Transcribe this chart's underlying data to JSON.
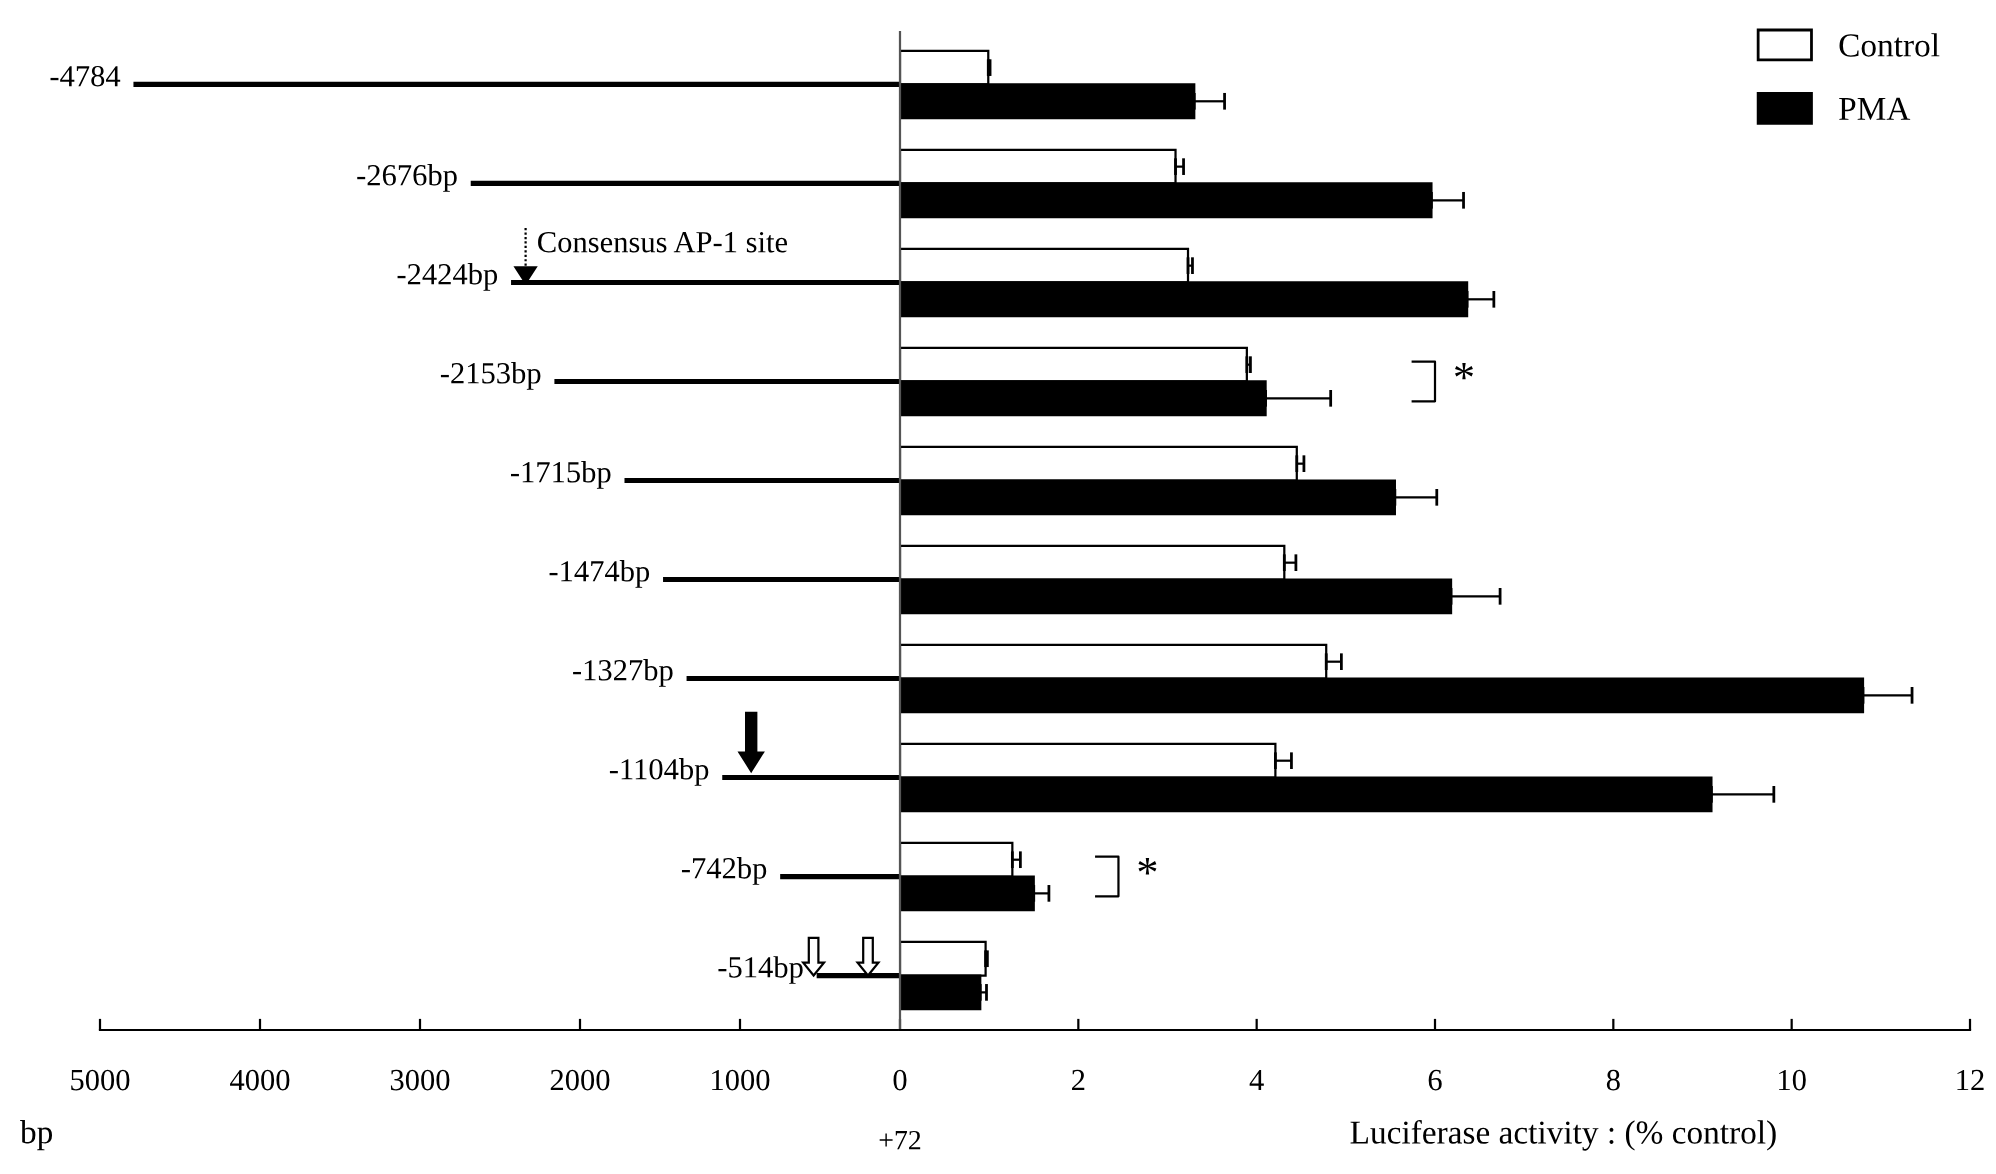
{
  "chart_data": [
    {
      "type": "bar",
      "orientation": "horizontal",
      "xlabel": "bp",
      "categories": [
        null,
        null,
        null,
        null,
        null,
        null,
        null,
        null,
        null,
        null
      ],
      "values": [
        -4784,
        -2676,
        -2424,
        -2153,
        -1715,
        -1474,
        -1327,
        -1104,
        -742,
        -514
      ],
      "value_labels": [
        "-4784",
        "-2676bp",
        "-2424bp",
        "-2153bp",
        "-1715bp",
        "-1474bp",
        "-1327bp",
        "-1104bp",
        "-742bp",
        "-514bp"
      ],
      "color": "#000000",
      "xlim": [
        -5000,
        0
      ],
      "xticks": [
        {
          "value": -5000,
          "label": "5000"
        },
        {
          "value": -4000,
          "label": "4000"
        },
        {
          "value": -3000,
          "label": "3000"
        },
        {
          "value": -2000,
          "label": "2000"
        },
        {
          "value": -1000,
          "label": "1000"
        }
      ],
      "tick_labels": "x",
      "annotations": [
        "Consensus AP-1 site",
        "+72"
      ]
    },
    {
      "type": "bar",
      "orientation": "horizontal",
      "xlabel": "Luciferase activity : (% control)",
      "categories": [
        null,
        null,
        null,
        null,
        null,
        null,
        null,
        null,
        null,
        null
      ],
      "series": [
        {
          "name": "Control",
          "color": "#ffffff",
          "values": [
            0.99,
            3.09,
            3.23,
            3.89,
            4.45,
            4.31,
            4.78,
            4.21,
            1.26,
            0.96
          ],
          "errors": [
            [
              0.99,
              1.01
            ],
            [
              3.09,
              3.18
            ],
            [
              3.23,
              3.28
            ],
            [
              3.89,
              3.93
            ],
            [
              4.45,
              4.53
            ],
            [
              4.31,
              4.44
            ],
            [
              4.78,
              4.95
            ],
            [
              4.21,
              4.39
            ],
            [
              1.26,
              1.35
            ],
            [
              0.96,
              0.98
            ]
          ]
        },
        {
          "name": "PMA",
          "color": "#000000",
          "values": [
            3.3,
            5.96,
            6.36,
            4.1,
            5.55,
            6.18,
            10.8,
            9.1,
            1.5,
            0.9
          ],
          "errors": [
            [
              3.3,
              3.64
            ],
            [
              5.96,
              6.32
            ],
            [
              6.36,
              6.66
            ],
            [
              4.1,
              4.83
            ],
            [
              5.55,
              6.02
            ],
            [
              6.18,
              6.73
            ],
            [
              10.8,
              11.35
            ],
            [
              9.1,
              9.8
            ],
            [
              1.5,
              1.67
            ],
            [
              0.9,
              0.97
            ]
          ]
        }
      ],
      "xlim": [
        0,
        12
      ],
      "xticks": [
        0,
        2,
        4,
        6,
        8,
        10,
        12
      ],
      "tick_labels": "x",
      "legend": "top right",
      "grid": false,
      "annotations": [
        "*",
        "*"
      ]
    }
  ]
}
